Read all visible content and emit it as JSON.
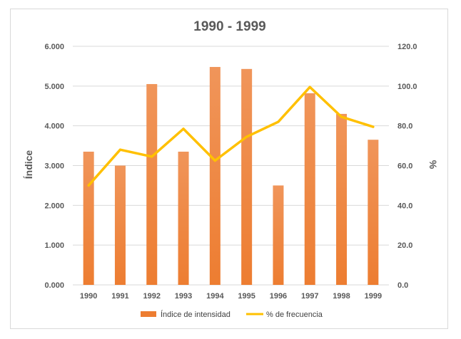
{
  "chart_data": {
    "type": "bar",
    "title": "1990 - 1999",
    "categories": [
      "1990",
      "1991",
      "1992",
      "1993",
      "1994",
      "1995",
      "1996",
      "1997",
      "1998",
      "1999"
    ],
    "series": [
      {
        "name": "Índice de intensidad",
        "type": "bar",
        "axis": "left",
        "color": "#ed7d31",
        "values": [
          3.35,
          3.0,
          5.05,
          3.35,
          5.48,
          5.43,
          2.5,
          4.82,
          4.3,
          3.65
        ]
      },
      {
        "name": "% de frecuencia",
        "type": "line",
        "axis": "right",
        "color": "#ffc000",
        "values": [
          50.0,
          68.0,
          64.5,
          78.5,
          62.5,
          74.5,
          82.0,
          99.5,
          84.5,
          79.5
        ]
      }
    ],
    "ylabel": "Índice",
    "y2label": "%",
    "ylim": [
      0,
      6
    ],
    "y2lim": [
      0,
      120
    ],
    "yticks": [
      "0.000",
      "1.000",
      "2.000",
      "3.000",
      "4.000",
      "5.000",
      "6.000"
    ],
    "y2ticks": [
      "0.0",
      "20.0",
      "40.0",
      "60.0",
      "80.0",
      "100.0",
      "120.0"
    ],
    "grid": true,
    "legend": "bottom"
  }
}
